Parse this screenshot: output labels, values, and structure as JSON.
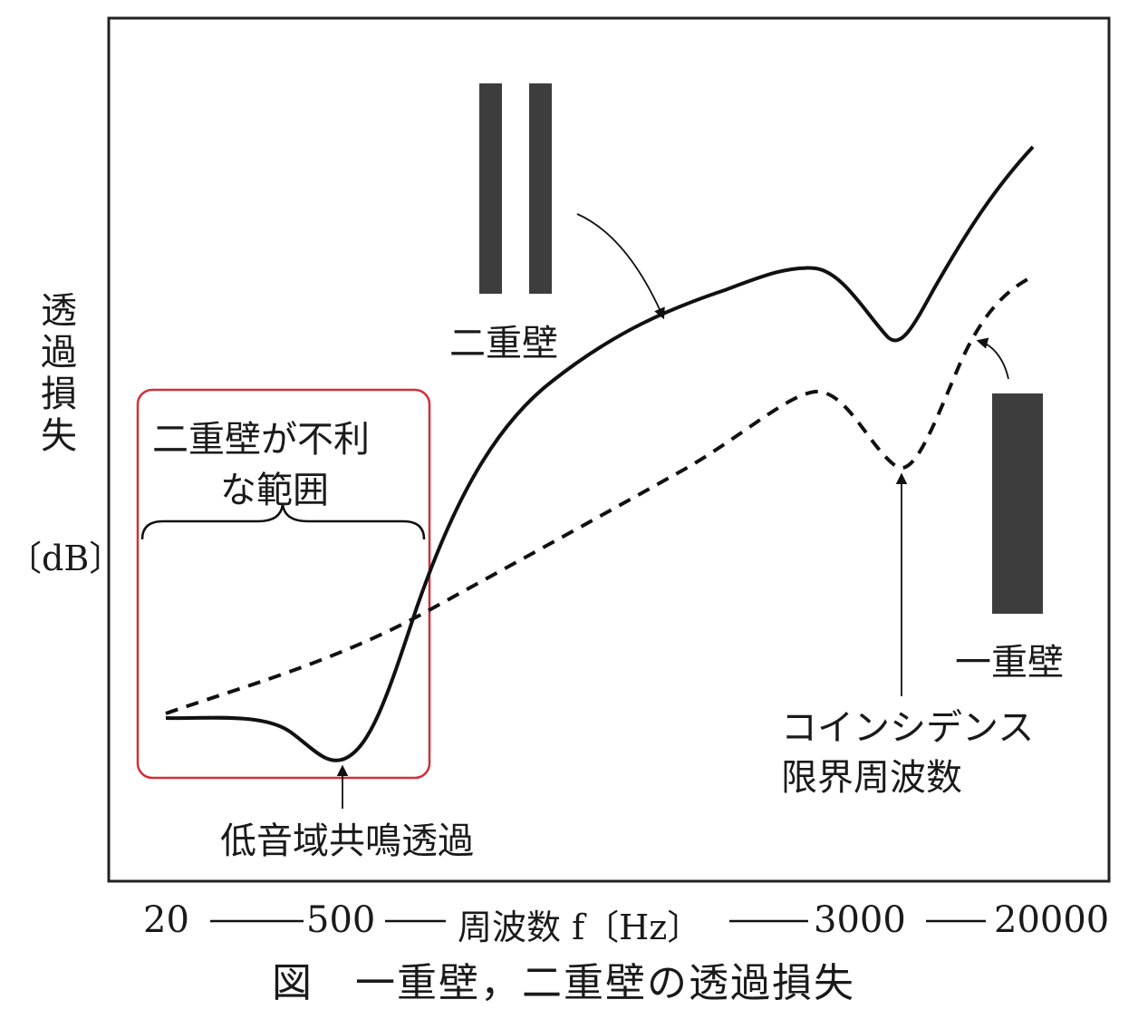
{
  "figure": {
    "caption": "図　一重壁，二重壁の透過損失",
    "y_axis": {
      "chars": [
        "透",
        "過",
        "損",
        "失"
      ],
      "unit": "〔dB〕"
    },
    "x_axis": {
      "ticks": [
        "20",
        "500",
        "3000",
        "20000"
      ],
      "label": "周波数 f〔Hz〕"
    },
    "labels": {
      "double_wall": "二重壁",
      "single_wall": "一重壁",
      "disadvantage_line1": "二重壁が不利",
      "disadvantage_line2": "な範囲",
      "low_resonance": "低音域共鳴透過",
      "coincidence_line1": "コインシデンス",
      "coincidence_line2": "限界周波数"
    },
    "colors": {
      "curve": "#111111",
      "wall_fill": "#3d3d3d",
      "highlight": "#d0303a",
      "frame": "#222222"
    }
  },
  "chart_data": {
    "type": "line",
    "title": "図　一重壁，二重壁の透過損失",
    "xlabel": "周波数 f〔Hz〕",
    "ylabel": "透過損失〔dB〕",
    "x_ticks": [
      "20",
      "500",
      "3000",
      "20000"
    ],
    "series": [
      {
        "name": "二重壁",
        "style": "solid"
      },
      {
        "name": "一重壁",
        "style": "dashed"
      }
    ],
    "annotations": [
      "二重壁が不利な範囲",
      "低音域共鳴透過",
      "コインシデンス限界周波数"
    ]
  }
}
